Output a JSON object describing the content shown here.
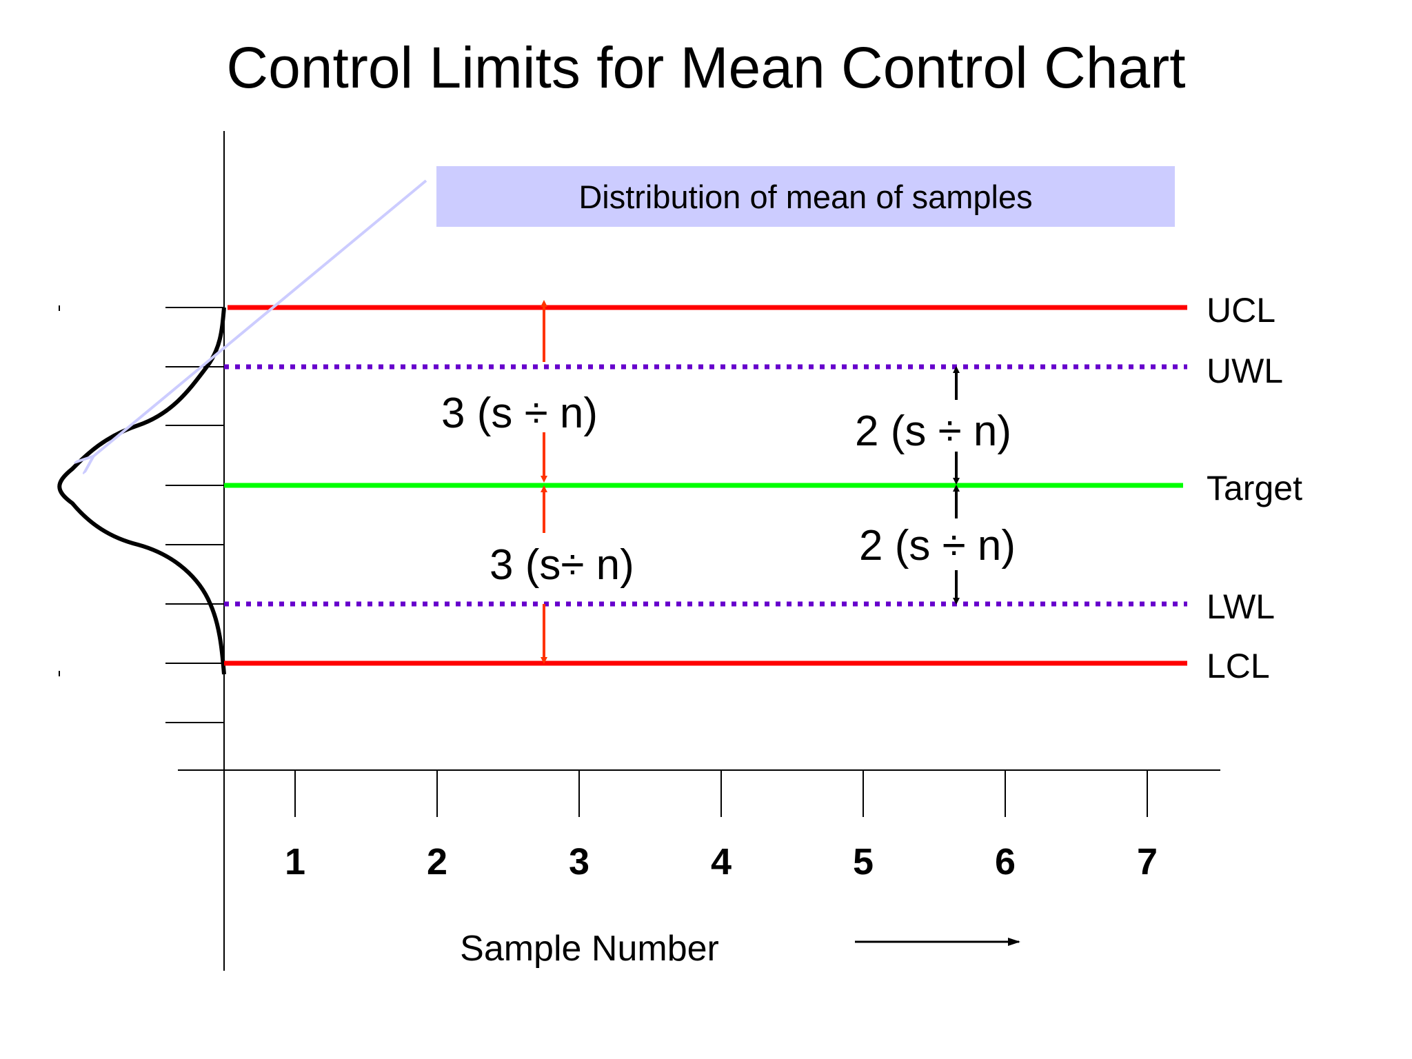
{
  "title": "Control Limits for Mean Control Chart",
  "callout": "Distribution of mean of samples",
  "colors": {
    "control_limit": "#ff0000",
    "warning_limit": "#6600cc",
    "target": "#00ff00",
    "limit_arrow": "#ff3300",
    "warning_arrow": "#000000",
    "callout_fill": "#ccccff",
    "callout_arrow": "#ccccff"
  },
  "annotations": {
    "upper_control": "3 (s ÷ n)",
    "lower_control": "3 (s÷ n)",
    "upper_warning": "2 (s ÷ n)",
    "lower_warning": "2 (s ÷ n)"
  },
  "chart_data": {
    "type": "line",
    "xlabel": "Sample Number",
    "x_ticks": [
      "1",
      "2",
      "3",
      "4",
      "5",
      "6",
      "7"
    ],
    "lines": [
      {
        "label": "UCL",
        "level_sigma": 3,
        "style": "solid",
        "color": "#ff0000"
      },
      {
        "label": "UWL",
        "level_sigma": 2,
        "style": "dotted",
        "color": "#6600cc"
      },
      {
        "label": "Target",
        "level_sigma": 0,
        "style": "solid",
        "color": "#00ff00"
      },
      {
        "label": "LWL",
        "level_sigma": -2,
        "style": "dotted",
        "color": "#6600cc"
      },
      {
        "label": "LCL",
        "level_sigma": -3,
        "style": "solid",
        "color": "#ff0000"
      }
    ],
    "distribution": "normal"
  }
}
